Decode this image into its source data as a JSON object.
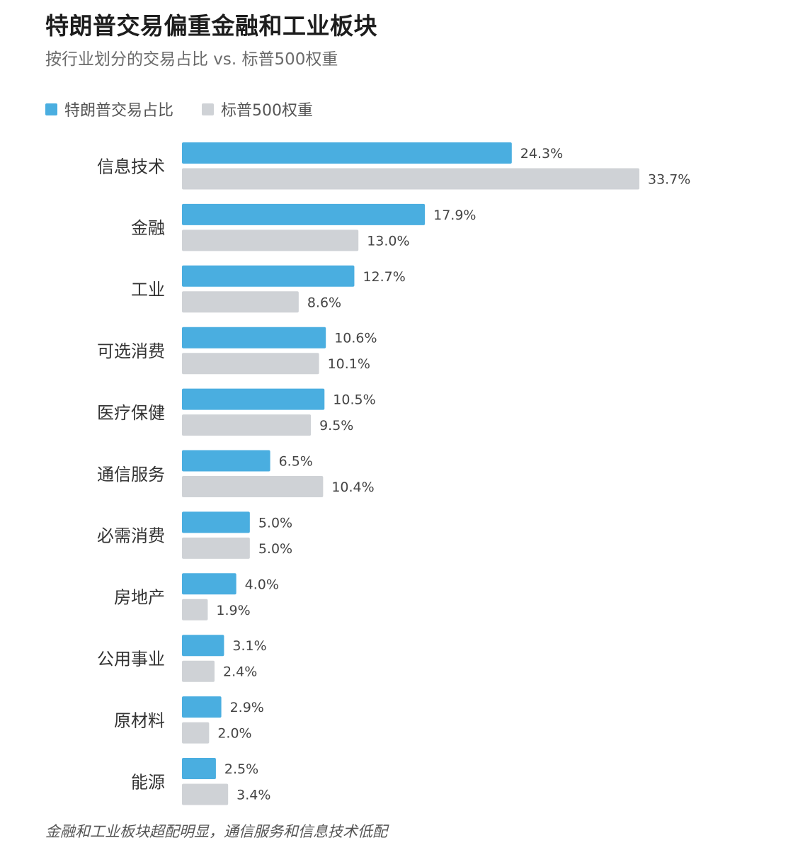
{
  "title": "特朗普交易偏重金融和工业板块",
  "subtitle": "按行业划分的交易占比 vs. 标普500权重",
  "footnote": "金融和工业板块超配明显，通信服务和信息技术低配",
  "colors": {
    "trump": "#4aaee0",
    "sp500": "#cfd2d6",
    "label_text": "#333333",
    "value_text": "#444444"
  },
  "chart_data": {
    "type": "bar",
    "orientation": "horizontal",
    "title": "特朗普交易偏重金融和工业板块",
    "subtitle": "按行业划分的交易占比 vs. 标普500权重",
    "legend_position": "top-left",
    "value_suffix": "%",
    "grid": false,
    "xlim": [
      0,
      35
    ],
    "categories": [
      "信息技术",
      "金融",
      "工业",
      "可选消费",
      "医疗保健",
      "通信服务",
      "必需消费",
      "房地产",
      "公用事业",
      "原材料",
      "能源"
    ],
    "series": [
      {
        "name": "特朗普交易占比",
        "values": [
          24.3,
          17.9,
          12.7,
          10.6,
          10.5,
          6.5,
          5.0,
          4.0,
          3.1,
          2.9,
          2.5
        ]
      },
      {
        "name": "标普500权重",
        "values": [
          33.7,
          13.0,
          8.6,
          10.1,
          9.5,
          10.4,
          5.0,
          1.9,
          2.4,
          2.0,
          3.4
        ]
      }
    ]
  }
}
